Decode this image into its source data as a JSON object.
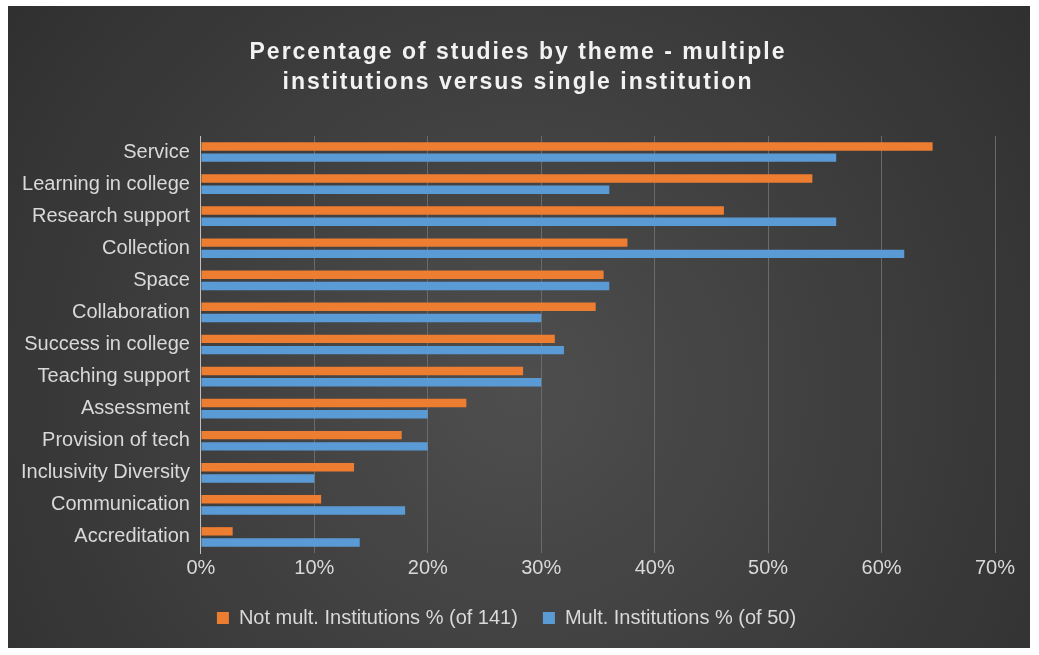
{
  "chart_data": {
    "type": "bar",
    "orientation": "horizontal",
    "title": "Percentage of studies by theme - multiple institutions versus single institution",
    "categories": [
      "Service",
      "Learning in college",
      "Research support",
      "Collection",
      "Space",
      "Collaboration",
      "Success in college",
      "Teaching support",
      "Assessment",
      "Provision of tech",
      "Inclusivity Diversity",
      "Communication",
      "Accreditation"
    ],
    "series": [
      {
        "name": "Not mult. Institutions % (of 141)",
        "color": "#ed7d31",
        "values": [
          64.5,
          53.9,
          46.1,
          37.6,
          35.5,
          34.8,
          31.2,
          28.4,
          23.4,
          17.7,
          13.5,
          10.6,
          2.8
        ]
      },
      {
        "name": "Mult. Institutions % (of 50)",
        "color": "#5b9bd5",
        "values": [
          56,
          36,
          56,
          62,
          36,
          30,
          32,
          30,
          20,
          20,
          10,
          18,
          14
        ]
      }
    ],
    "xlim": [
      0,
      70
    ],
    "xticks": [
      {
        "value": 0,
        "label": "0%"
      },
      {
        "value": 10,
        "label": "10%"
      },
      {
        "value": 20,
        "label": "20%"
      },
      {
        "value": 30,
        "label": "30%"
      },
      {
        "value": 40,
        "label": "40%"
      },
      {
        "value": 50,
        "label": "50%"
      },
      {
        "value": 60,
        "label": "60%"
      },
      {
        "value": 70,
        "label": "70%"
      }
    ],
    "grid": "x",
    "legend": "bottom"
  }
}
